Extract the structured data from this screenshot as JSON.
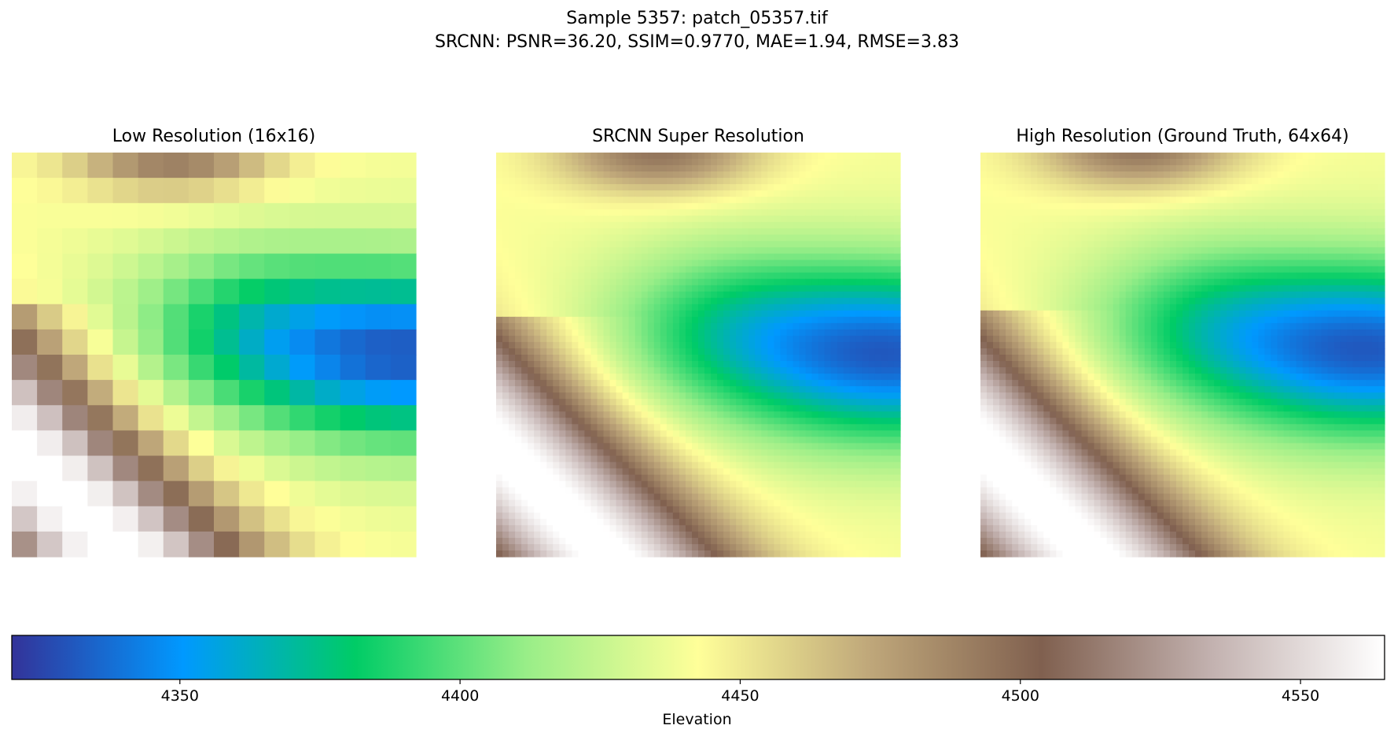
{
  "figure": {
    "title_line1": "Sample 5357: patch_05357.tif",
    "title_line2": "SRCNN: PSNR=36.20, SSIM=0.9770, MAE=1.94, RMSE=3.83"
  },
  "chart_data": [
    {
      "type": "heatmap",
      "title": "Low Resolution (16x16)",
      "grid": [
        16,
        16
      ],
      "colormap": "terrain",
      "value_range": [
        4320,
        4565
      ]
    },
    {
      "type": "heatmap",
      "title": "SRCNN Super Resolution",
      "grid": [
        64,
        64
      ],
      "colormap": "terrain",
      "value_range": [
        4320,
        4565
      ]
    },
    {
      "type": "heatmap",
      "title": "High Resolution (Ground Truth, 64x64)",
      "grid": [
        64,
        64
      ],
      "colormap": "terrain",
      "value_range": [
        4320,
        4565
      ]
    }
  ],
  "colorbar": {
    "label": "Elevation",
    "range": [
      4320,
      4565
    ],
    "ticks": [
      4350,
      4400,
      4450,
      4500,
      4550
    ],
    "tick_labels": [
      "4350",
      "4400",
      "4450",
      "4500",
      "4550"
    ],
    "colormap_stops": [
      "#333399",
      "#0099ff",
      "#00cc66",
      "#99ee88",
      "#ffff99",
      "#bfa77a",
      "#80604f",
      "#c3b2b0",
      "#ffffff"
    ]
  }
}
